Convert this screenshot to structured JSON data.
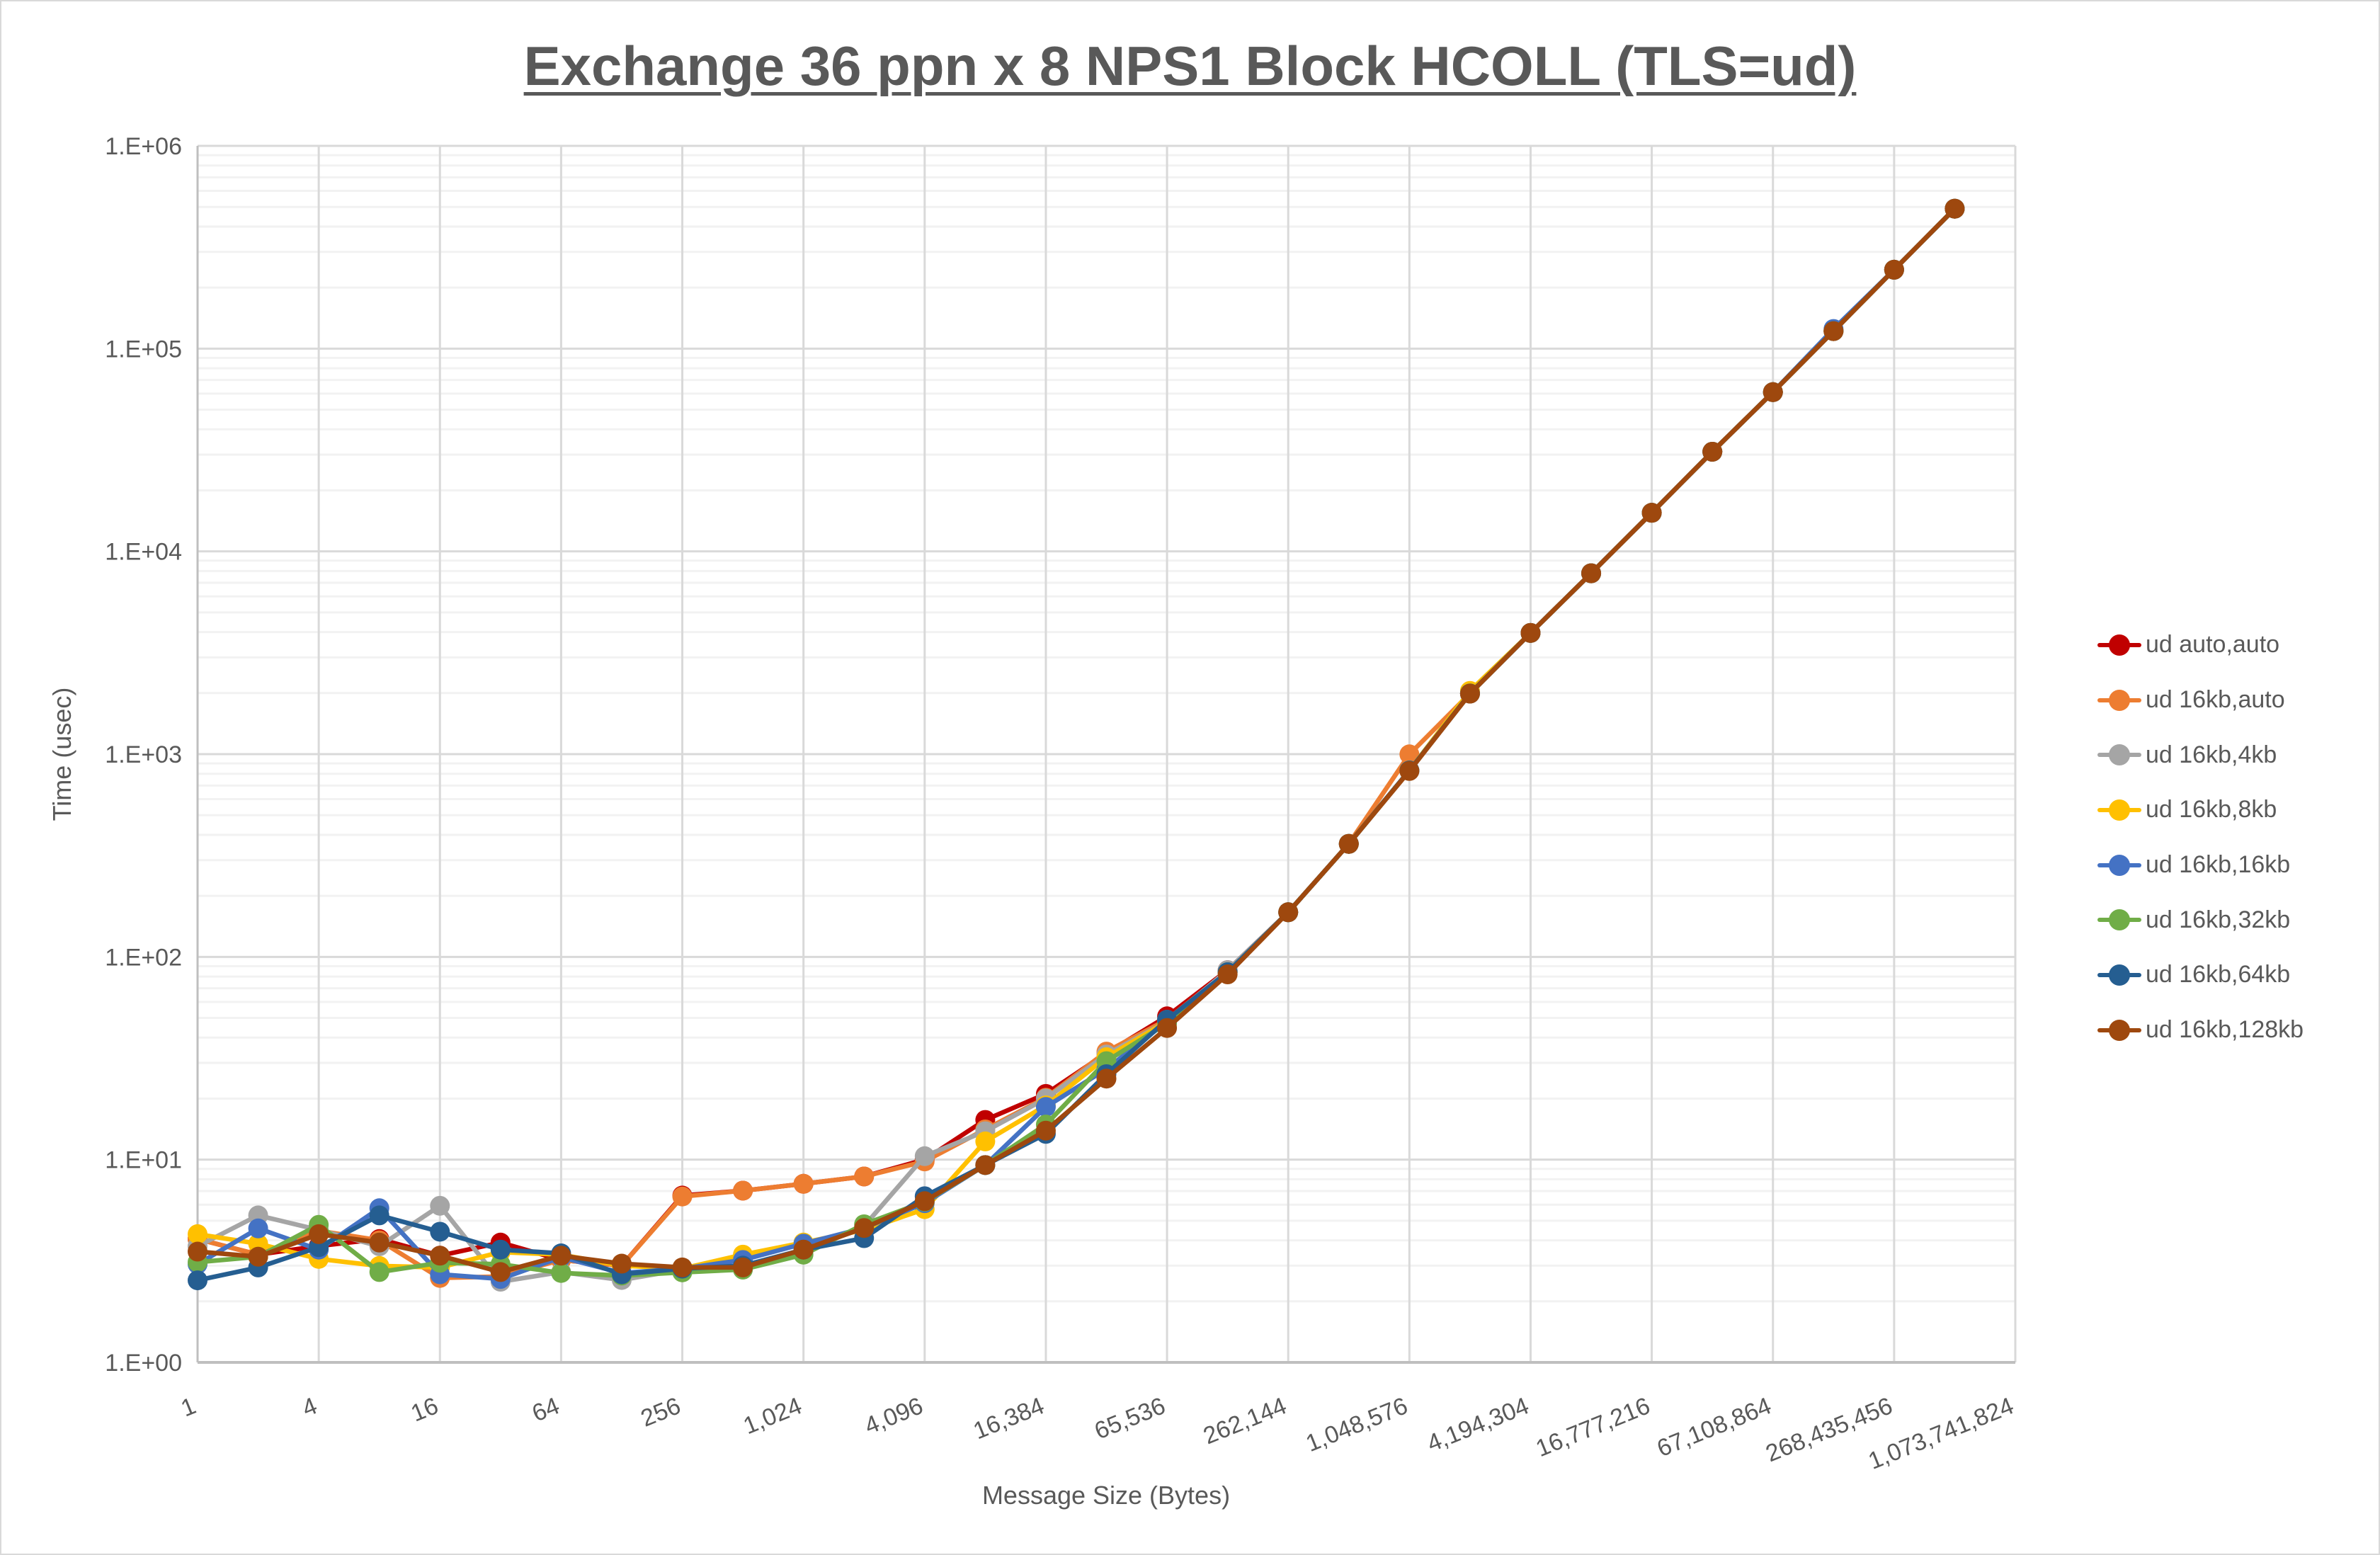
{
  "chart_data": {
    "type": "line",
    "title": "Exchange 36 ppn x 8 NPS1 Block HCOLL (TLS=ud)",
    "xlabel": "Message Size (Bytes)",
    "ylabel": "Time (usec)",
    "x_scale": "log2",
    "y_scale": "log10",
    "xlim": [
      1,
      1073741824
    ],
    "ylim": [
      1,
      1000000
    ],
    "grid": true,
    "legend_position": "right",
    "x": [
      1,
      2,
      4,
      8,
      16,
      32,
      64,
      128,
      256,
      512,
      1024,
      2048,
      4096,
      8192,
      16384,
      32768,
      65536,
      131072,
      262144,
      524288,
      1048576,
      2097152,
      4194304,
      8388608,
      16777216,
      33554432,
      67108864,
      134217728,
      268435456,
      536870912
    ],
    "x_tick_labels": [
      "1",
      "4",
      "16",
      "64",
      "256",
      "1,024",
      "4,096",
      "16,384",
      "65,536",
      "262,144",
      "1,048,576",
      "4,194,304",
      "16,777,216",
      "67,108,864",
      "268,435,456",
      "1,073,741,824"
    ],
    "x_tick_values": [
      1,
      4,
      16,
      64,
      256,
      1024,
      4096,
      16384,
      65536,
      262144,
      1048576,
      4194304,
      16777216,
      67108864,
      268435456,
      1073741824
    ],
    "y_tick_labels": [
      "1.E+00",
      "1.E+01",
      "1.E+02",
      "1.E+03",
      "1.E+04",
      "1.E+05",
      "1.E+06"
    ],
    "y_tick_values": [
      1,
      10,
      100,
      1000,
      10000,
      100000,
      1000000
    ],
    "series": [
      {
        "name": "ud auto,auto",
        "color": "#c00000",
        "values": [
          4.06,
          3.4,
          3.75,
          4.06,
          3.36,
          3.9,
          3.2,
          3.0,
          6.65,
          7.03,
          7.6,
          8.26,
          10.0,
          15.7,
          21.1,
          33.5,
          50.9,
          86,
          166,
          361,
          830,
          1990,
          3960,
          7800,
          15500,
          31000,
          61000,
          122000,
          245000,
          490000
        ]
      },
      {
        "name": "ud 16kb,auto",
        "color": "#ed7d31",
        "values": [
          4.06,
          3.4,
          4.46,
          4.0,
          2.61,
          2.65,
          3.2,
          3.0,
          6.58,
          7.03,
          7.6,
          8.26,
          9.8,
          14.1,
          20.2,
          34.1,
          49,
          85,
          166,
          361,
          998,
          1990,
          3960,
          7800,
          15500,
          31000,
          61000,
          122000,
          245000,
          490000
        ]
      },
      {
        "name": "ud 16kb,4kb",
        "color": "#a5a5a5",
        "values": [
          3.74,
          5.31,
          4.5,
          3.74,
          5.92,
          2.5,
          2.79,
          2.55,
          2.87,
          2.87,
          3.5,
          4.7,
          10.4,
          13.8,
          20,
          33,
          48,
          86,
          166,
          361,
          830,
          1990,
          3960,
          7800,
          15500,
          31000,
          61000,
          122000,
          245000,
          490000
        ]
      },
      {
        "name": "ud 16kb,8kb",
        "color": "#ffc000",
        "values": [
          4.29,
          3.85,
          3.24,
          2.99,
          2.94,
          3.5,
          3.4,
          3.0,
          2.9,
          3.4,
          3.9,
          4.5,
          5.7,
          12.3,
          18.5,
          32,
          48,
          84,
          166,
          361,
          830,
          2050,
          3960,
          7800,
          15500,
          31000,
          61000,
          122000,
          245000,
          490000
        ]
      },
      {
        "name": "ud 16kb,16kb",
        "color": "#4472c4",
        "values": [
          3.05,
          4.58,
          3.6,
          5.76,
          2.72,
          2.58,
          3.3,
          2.76,
          2.9,
          3.2,
          3.85,
          4.6,
          6.1,
          9.4,
          18.2,
          28,
          48,
          84,
          166,
          361,
          830,
          1990,
          3960,
          7800,
          15500,
          31000,
          61000,
          125000,
          245000,
          490000
        ]
      },
      {
        "name": "ud 16kb,32kb",
        "color": "#70ad47",
        "values": [
          3.12,
          3.32,
          4.77,
          2.79,
          3.1,
          3.05,
          2.76,
          2.68,
          2.78,
          2.87,
          3.4,
          4.8,
          6.2,
          9.4,
          14.9,
          30.6,
          47,
          84,
          166,
          361,
          830,
          1990,
          3960,
          7800,
          15500,
          31000,
          61000,
          122000,
          245000,
          490000
        ]
      },
      {
        "name": "ud 16kb,64kb",
        "color": "#255e91",
        "values": [
          2.54,
          2.94,
          3.7,
          5.31,
          4.41,
          3.6,
          3.45,
          2.72,
          2.9,
          3.0,
          3.6,
          4.1,
          6.6,
          9.4,
          13.4,
          26.4,
          49,
          84,
          166,
          361,
          830,
          1990,
          3960,
          7800,
          15500,
          31000,
          61000,
          122000,
          245000,
          490000
        ]
      },
      {
        "name": "ud 16kb,128kb",
        "color": "#9e480e",
        "values": [
          3.52,
          3.32,
          4.29,
          3.9,
          3.36,
          2.79,
          3.36,
          3.07,
          2.94,
          2.94,
          3.6,
          4.6,
          6.24,
          9.4,
          13.9,
          25.1,
          44.6,
          82,
          166,
          361,
          826,
          1987,
          3960,
          7800,
          15500,
          31000,
          61000,
          122000,
          245000,
          490000
        ]
      }
    ]
  }
}
